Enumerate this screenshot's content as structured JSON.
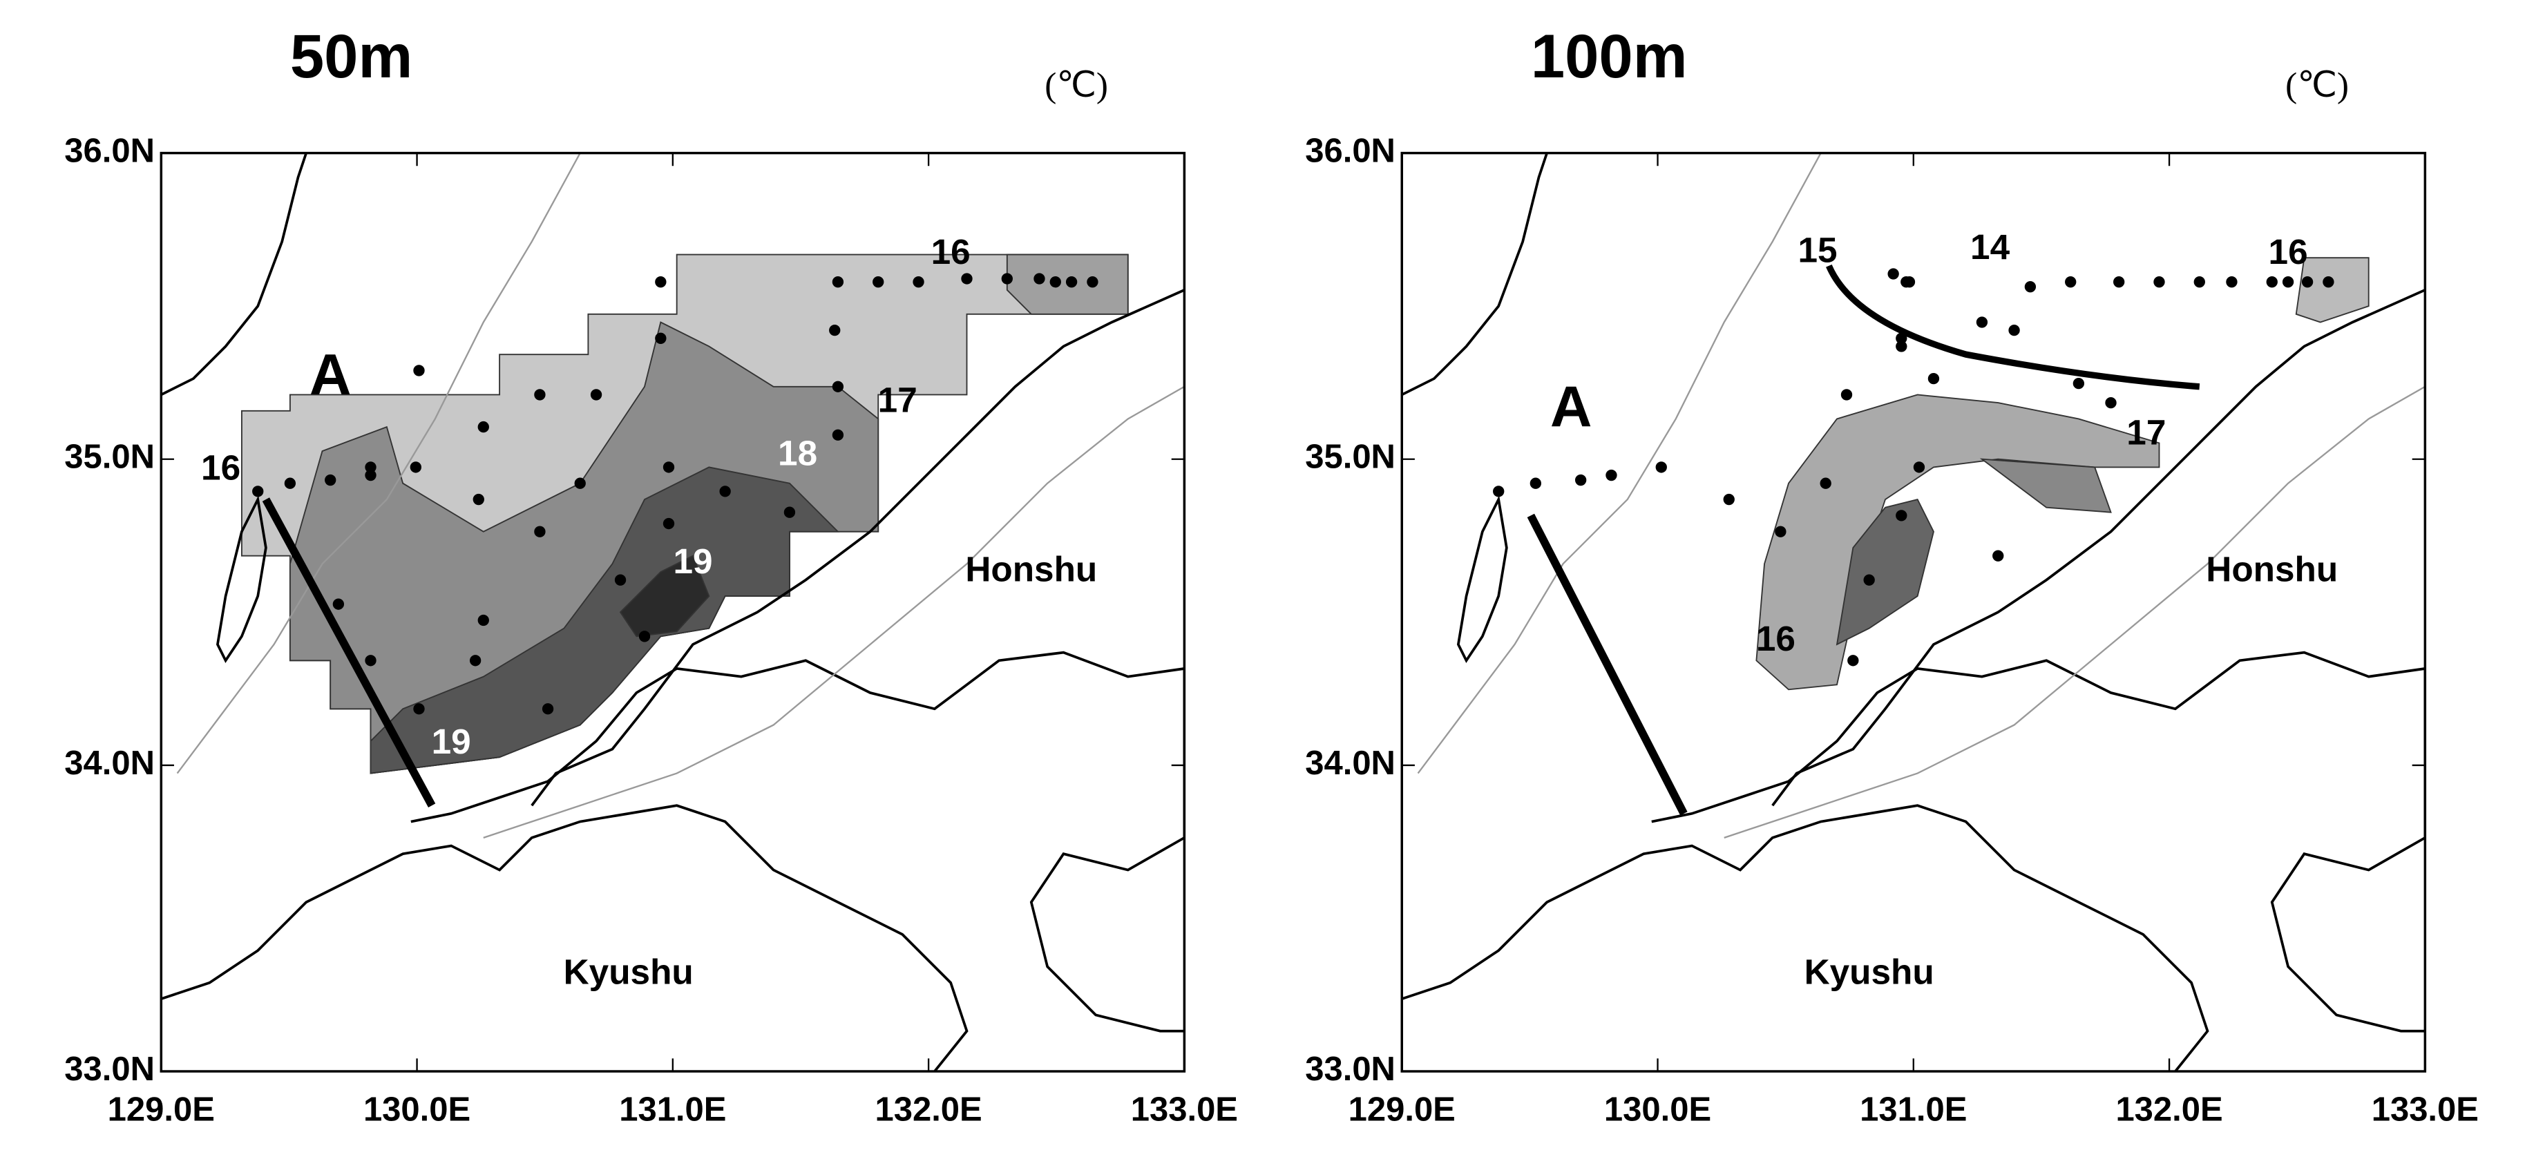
{
  "panels": [
    {
      "title": "50m",
      "unit": "(℃)",
      "x_tick_labels": [
        "129.0E",
        "130.0E",
        "131.0E",
        "132.0E",
        "133.0E"
      ],
      "y_tick_labels": [
        "36.0N",
        "35.0N",
        "34.0N",
        "33.0N"
      ],
      "region_label": "A",
      "place_labels": [
        "Honshu",
        "Kyushu"
      ],
      "contour_labels": [
        "16",
        "16",
        "17",
        "18",
        "19",
        "19"
      ]
    },
    {
      "title": "100m",
      "unit": "(℃)",
      "x_tick_labels": [
        "129.0E",
        "130.0E",
        "131.0E",
        "132.0E",
        "133.0E"
      ],
      "y_tick_labels": [
        "36.0N",
        "35.0N",
        "34.0N",
        "33.0N"
      ],
      "region_label": "A",
      "place_labels": [
        "Honshu",
        "Kyushu"
      ],
      "contour_labels": [
        "15",
        "14",
        "16",
        "17",
        "16"
      ]
    }
  ]
}
